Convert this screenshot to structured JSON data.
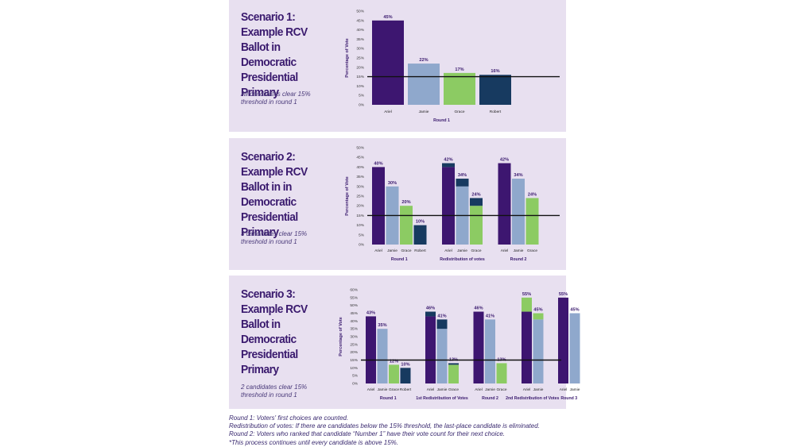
{
  "colors": {
    "panel": "#e8e0f0",
    "title": "#3a1a6e",
    "ariel": "#3d1670",
    "jamie": "#8fa8cc",
    "grace": "#8ccb63",
    "robert": "#173a60",
    "threshold": "#111111"
  },
  "scenarios": [
    {
      "title": "Scenario 1: Example RCV Ballot in Democratic Presidential Primary",
      "note": "All candidates clear 15% threshold in round 1"
    },
    {
      "title": "Scenario 2: Example RCV Ballot in in Democratic Presidential Primary",
      "note": "3 candidates clear 15% threshold in round 1"
    },
    {
      "title": "Scenario 3: Example RCV Ballot in Democratic Presidential Primary",
      "note": "2 candidates clear 15% threshold in round 1"
    }
  ],
  "chart_data": [
    {
      "type": "bar",
      "ylabel": "Percentage of Vote",
      "ylim": [
        0,
        50
      ],
      "yticks": [
        "0%",
        "5%",
        "10%",
        "15%",
        "20%",
        "25%",
        "30%",
        "35%",
        "40%",
        "45%",
        "50%"
      ],
      "threshold": 15,
      "groups": [
        {
          "label": "Round 1",
          "bars": [
            {
              "category": "Ariel",
              "base": 45,
              "added": 0,
              "base_color": "ariel",
              "label": "45%"
            },
            {
              "category": "Jamie",
              "base": 22,
              "added": 0,
              "base_color": "jamie",
              "label": "22%"
            },
            {
              "category": "Grace",
              "base": 17,
              "added": 0,
              "base_color": "grace",
              "label": "17%"
            },
            {
              "category": "Robert",
              "base": 16,
              "added": 0,
              "base_color": "robert",
              "label": "16%"
            }
          ]
        }
      ]
    },
    {
      "type": "bar",
      "ylabel": "Percentage of Vote",
      "ylim": [
        0,
        50
      ],
      "yticks": [
        "0%",
        "5%",
        "10%",
        "15%",
        "20%",
        "25%",
        "30%",
        "35%",
        "40%",
        "45%",
        "50%"
      ],
      "threshold": 15,
      "groups": [
        {
          "label": "Round 1",
          "bars": [
            {
              "category": "Ariel",
              "base": 40,
              "added": 0,
              "base_color": "ariel",
              "label": "40%"
            },
            {
              "category": "Jamie",
              "base": 30,
              "added": 0,
              "base_color": "jamie",
              "label": "30%"
            },
            {
              "category": "Grace",
              "base": 20,
              "added": 0,
              "base_color": "grace",
              "label": "20%"
            },
            {
              "category": "Robert",
              "base": 10,
              "added": 0,
              "base_color": "robert",
              "label": "10%"
            }
          ]
        },
        {
          "label": "Redistribution of votes",
          "bars": [
            {
              "category": "Ariel",
              "base": 40,
              "added": 2,
              "base_color": "ariel",
              "added_color": "robert",
              "label": "42%"
            },
            {
              "category": "Jamie",
              "base": 30,
              "added": 4,
              "base_color": "jamie",
              "added_color": "robert",
              "label": "34%"
            },
            {
              "category": "Grace",
              "base": 20,
              "added": 4,
              "base_color": "grace",
              "added_color": "robert",
              "label": "24%"
            }
          ]
        },
        {
          "label": "Round 2",
          "bars": [
            {
              "category": "Ariel",
              "base": 42,
              "added": 0,
              "base_color": "ariel",
              "label": "42%"
            },
            {
              "category": "Jamie",
              "base": 34,
              "added": 0,
              "base_color": "jamie",
              "label": "34%"
            },
            {
              "category": "Grace",
              "base": 24,
              "added": 0,
              "base_color": "grace",
              "label": "24%"
            }
          ]
        }
      ]
    },
    {
      "type": "bar",
      "ylabel": "Percentage of Vote",
      "ylim": [
        0,
        60
      ],
      "yticks": [
        "0%",
        "5%",
        "10%",
        "15%",
        "20%",
        "25%",
        "30%",
        "35%",
        "40%",
        "45%",
        "50%",
        "55%",
        "60%"
      ],
      "threshold": 15,
      "groups": [
        {
          "label": "Round 1",
          "bars": [
            {
              "category": "Ariel",
              "base": 43,
              "added": 0,
              "base_color": "ariel",
              "label": "43%"
            },
            {
              "category": "Jamie",
              "base": 35,
              "added": 0,
              "base_color": "jamie",
              "label": "35%"
            },
            {
              "category": "Grace",
              "base": 12,
              "added": 0,
              "base_color": "grace",
              "label": "12%"
            },
            {
              "category": "Robert",
              "base": 10,
              "added": 0,
              "base_color": "robert",
              "label": "10%"
            }
          ]
        },
        {
          "label": "1st Redistribution of Votes",
          "bars": [
            {
              "category": "Ariel",
              "base": 43,
              "added": 3,
              "base_color": "ariel",
              "added_color": "robert",
              "label": "46%"
            },
            {
              "category": "Jamie",
              "base": 35,
              "added": 6,
              "base_color": "jamie",
              "added_color": "robert",
              "label": "41%"
            },
            {
              "category": "Grace",
              "base": 12,
              "added": 1,
              "base_color": "grace",
              "added_color": "robert",
              "label": "13%"
            }
          ]
        },
        {
          "label": "Round 2",
          "bars": [
            {
              "category": "Ariel",
              "base": 46,
              "added": 0,
              "base_color": "ariel",
              "label": "46%"
            },
            {
              "category": "Jamie",
              "base": 41,
              "added": 0,
              "base_color": "jamie",
              "label": "41%"
            },
            {
              "category": "Grace",
              "base": 13,
              "added": 0,
              "base_color": "grace",
              "label": "13%"
            }
          ]
        },
        {
          "label": "2nd Redistribution of Votes",
          "bars": [
            {
              "category": "Ariel",
              "base": 46,
              "added": 9,
              "base_color": "ariel",
              "added_color": "grace",
              "label": "55%"
            },
            {
              "category": "Jamie",
              "base": 41,
              "added": 4,
              "base_color": "jamie",
              "added_color": "grace",
              "label": "45%"
            }
          ]
        },
        {
          "label": "Round 3",
          "bars": [
            {
              "category": "Ariel",
              "base": 55,
              "added": 0,
              "base_color": "ariel",
              "label": "55%"
            },
            {
              "category": "Jamie",
              "base": 45,
              "added": 0,
              "base_color": "jamie",
              "label": "45%"
            }
          ]
        }
      ]
    }
  ],
  "footnotes": [
    "Round 1: Voters' first choices are counted.",
    "Redistribution of votes: If there are candidates below the 15% threshold, the last-place candidate is eliminated.",
    "Round 2: Voters who ranked that candidate “Number 1” have their vote count for their next choice.",
    "*This process continues until every candidate is above 15%."
  ]
}
